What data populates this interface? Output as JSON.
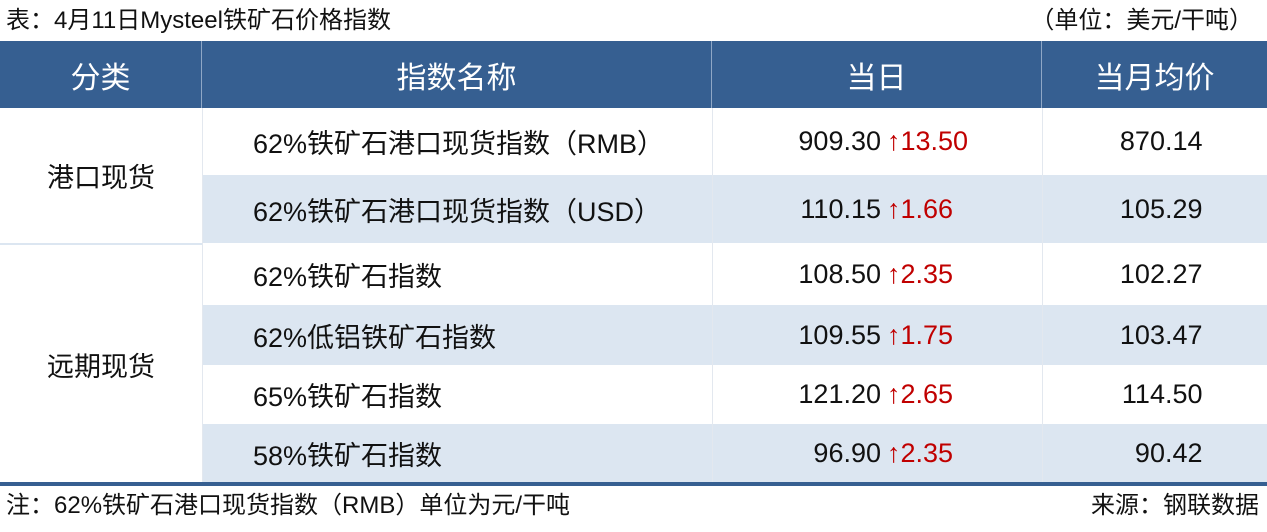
{
  "title": "表：4月11日Mysteel铁矿石价格指数",
  "unit": "（单位：美元/干吨）",
  "headers": [
    "分类",
    "指数名称",
    "当日",
    "当月均价"
  ],
  "categories": [
    "港口现货",
    "远期现货"
  ],
  "rows": [
    {
      "name": "62%铁矿石港口现货指数（RMB）",
      "value": "909.30",
      "change": "↑13.50",
      "avg": "870.14"
    },
    {
      "name": "62%铁矿石港口现货指数（USD）",
      "value": "110.15",
      "change": "↑1.66",
      "avg": "105.29"
    },
    {
      "name": "62%铁矿石指数",
      "value": "108.50",
      "change": "↑2.35",
      "avg": "102.27"
    },
    {
      "name": "62%低铝铁矿石指数",
      "value": "109.55",
      "change": "↑1.75",
      "avg": "103.47"
    },
    {
      "name": "65%铁矿石指数",
      "value": "121.20",
      "change": "↑2.65",
      "avg": "114.50"
    },
    {
      "name": "58%铁矿石指数",
      "value": "96.90",
      "change": "↑2.35",
      "avg": "90.42"
    }
  ],
  "note": "注：62%铁矿石港口现货指数（RMB）单位为元/干吨",
  "source": "来源：钢联数据",
  "colors": {
    "header": "#365f91",
    "alt_row": "#dce6f1",
    "up": "#c00000"
  }
}
